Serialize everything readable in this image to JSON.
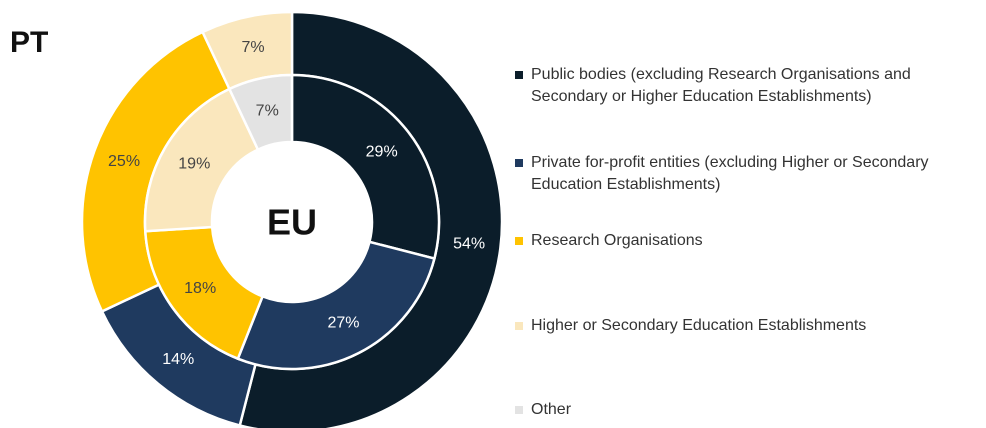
{
  "chart_data": {
    "type": "donut",
    "outer_label": "PT",
    "inner_label": "EU",
    "categories": [
      "Public bodies (excluding Research Organisations and Secondary or Higher Education Establishments)",
      "Private for-profit entities (excluding Higher or Secondary Education Establishments)",
      "Research Organisations",
      "Higher or Secondary Education Establishments",
      "Other"
    ],
    "colors": [
      "#0b1d2a",
      "#1f3a5f",
      "#ffc300",
      "#fae7bd",
      "#e3e3e3"
    ],
    "series": [
      {
        "name": "PT",
        "values": [
          54,
          14,
          25,
          7,
          null
        ],
        "value_labels": [
          "54%",
          "14%",
          "25%",
          "7%",
          null
        ]
      },
      {
        "name": "EU",
        "values": [
          29,
          27,
          18,
          19,
          7
        ],
        "value_labels": [
          "29%",
          "27%",
          "18%",
          "19%",
          "7%"
        ]
      }
    ]
  }
}
